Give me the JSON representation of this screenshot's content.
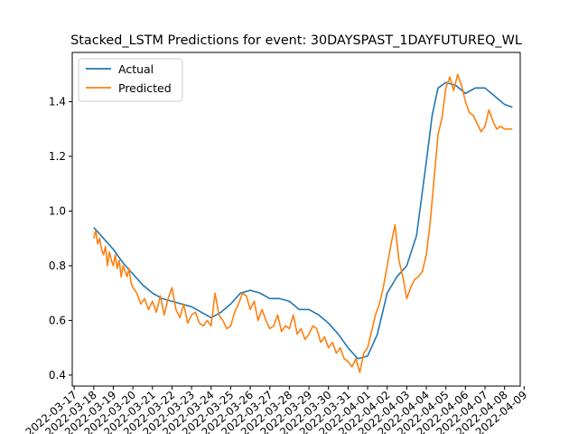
{
  "chart_data": {
    "type": "line",
    "title": "Stacked_LSTM Predictions for event: 30DAYSPAST_1DAYFUTUREQ_WL",
    "xlabel": "",
    "ylabel": "",
    "x_tick_labels": [
      "2022-03-17",
      "2022-03-18",
      "2022-03-19",
      "2022-03-20",
      "2022-03-21",
      "2022-03-22",
      "2022-03-23",
      "2022-03-24",
      "2022-03-25",
      "2022-03-26",
      "2022-03-27",
      "2022-03-28",
      "2022-03-29",
      "2022-03-30",
      "2022-03-31",
      "2022-04-01",
      "2022-04-02",
      "2022-04-03",
      "2022-04-04",
      "2022-04-05",
      "2022-04-06",
      "2022-04-07",
      "2022-04-08",
      "2022-04-09"
    ],
    "xlim": [
      -0.1,
      22.8
    ],
    "y_ticks": [
      0.4,
      0.6,
      0.8,
      1.0,
      1.2,
      1.4
    ],
    "y_tick_labels": [
      "0.4",
      "0.6",
      "0.8",
      "1.0",
      "1.2",
      "1.4"
    ],
    "ylim": [
      0.36,
      1.58
    ],
    "legend_position": "top-left",
    "grid": false,
    "series": [
      {
        "name": "Actual",
        "color": "#1f77b4",
        "x": [
          1.0,
          1.5,
          2.0,
          2.5,
          3.0,
          3.5,
          4.0,
          4.5,
          5.0,
          5.5,
          6.0,
          6.5,
          7.0,
          7.5,
          8.0,
          8.5,
          9.0,
          9.5,
          10.0,
          10.5,
          11.0,
          11.5,
          12.0,
          12.5,
          13.0,
          13.5,
          14.0,
          14.5,
          15.0,
          15.5,
          16.0,
          16.5,
          17.0,
          17.5,
          18.0,
          18.3,
          18.6,
          19.0,
          19.5,
          20.0,
          20.5,
          21.0,
          21.5,
          22.0,
          22.4
        ],
        "y": [
          0.94,
          0.9,
          0.86,
          0.81,
          0.77,
          0.73,
          0.7,
          0.68,
          0.67,
          0.66,
          0.65,
          0.63,
          0.61,
          0.63,
          0.66,
          0.7,
          0.71,
          0.7,
          0.68,
          0.68,
          0.67,
          0.64,
          0.64,
          0.62,
          0.59,
          0.55,
          0.5,
          0.46,
          0.47,
          0.55,
          0.7,
          0.76,
          0.8,
          0.91,
          1.18,
          1.35,
          1.45,
          1.47,
          1.46,
          1.43,
          1.45,
          1.45,
          1.42,
          1.39,
          1.38
        ]
      },
      {
        "name": "Predicted",
        "color": "#ff7f0e",
        "x": [
          1.0,
          1.1,
          1.2,
          1.3,
          1.4,
          1.5,
          1.6,
          1.7,
          1.8,
          1.9,
          2.0,
          2.1,
          2.2,
          2.3,
          2.4,
          2.5,
          2.6,
          2.7,
          2.8,
          2.9,
          3.0,
          3.2,
          3.4,
          3.6,
          3.8,
          4.0,
          4.2,
          4.4,
          4.6,
          4.8,
          5.0,
          5.2,
          5.4,
          5.6,
          5.8,
          6.0,
          6.2,
          6.4,
          6.6,
          6.8,
          7.0,
          7.2,
          7.4,
          7.6,
          7.8,
          8.0,
          8.2,
          8.4,
          8.6,
          8.8,
          9.0,
          9.2,
          9.4,
          9.6,
          9.8,
          10.0,
          10.2,
          10.4,
          10.6,
          10.8,
          11.0,
          11.2,
          11.4,
          11.6,
          11.8,
          12.0,
          12.2,
          12.4,
          12.6,
          12.8,
          13.0,
          13.2,
          13.4,
          13.6,
          13.8,
          14.0,
          14.2,
          14.4,
          14.6,
          14.8,
          15.0,
          15.2,
          15.4,
          15.6,
          15.8,
          16.0,
          16.2,
          16.4,
          16.6,
          16.8,
          17.0,
          17.2,
          17.4,
          17.6,
          17.8,
          18.0,
          18.2,
          18.4,
          18.6,
          18.8,
          19.0,
          19.2,
          19.4,
          19.6,
          19.8,
          20.0,
          20.2,
          20.4,
          20.6,
          20.8,
          21.0,
          21.2,
          21.4,
          21.6,
          21.8,
          22.0,
          22.2,
          22.4
        ],
        "y": [
          0.9,
          0.93,
          0.88,
          0.9,
          0.86,
          0.84,
          0.87,
          0.8,
          0.85,
          0.82,
          0.8,
          0.84,
          0.79,
          0.82,
          0.76,
          0.8,
          0.78,
          0.76,
          0.79,
          0.74,
          0.72,
          0.7,
          0.66,
          0.68,
          0.64,
          0.67,
          0.63,
          0.69,
          0.62,
          0.68,
          0.72,
          0.64,
          0.61,
          0.66,
          0.59,
          0.62,
          0.63,
          0.59,
          0.58,
          0.6,
          0.58,
          0.7,
          0.62,
          0.6,
          0.57,
          0.58,
          0.63,
          0.66,
          0.7,
          0.69,
          0.64,
          0.67,
          0.6,
          0.64,
          0.6,
          0.57,
          0.58,
          0.62,
          0.56,
          0.58,
          0.57,
          0.62,
          0.55,
          0.57,
          0.53,
          0.55,
          0.58,
          0.57,
          0.52,
          0.54,
          0.5,
          0.52,
          0.48,
          0.5,
          0.46,
          0.45,
          0.43,
          0.46,
          0.41,
          0.48,
          0.5,
          0.56,
          0.62,
          0.66,
          0.72,
          0.8,
          0.88,
          0.95,
          0.82,
          0.76,
          0.68,
          0.72,
          0.75,
          0.76,
          0.78,
          0.84,
          0.96,
          1.12,
          1.28,
          1.34,
          1.45,
          1.49,
          1.44,
          1.5,
          1.46,
          1.4,
          1.36,
          1.35,
          1.32,
          1.29,
          1.31,
          1.37,
          1.33,
          1.3,
          1.31,
          1.3,
          1.3,
          1.3
        ]
      }
    ]
  }
}
